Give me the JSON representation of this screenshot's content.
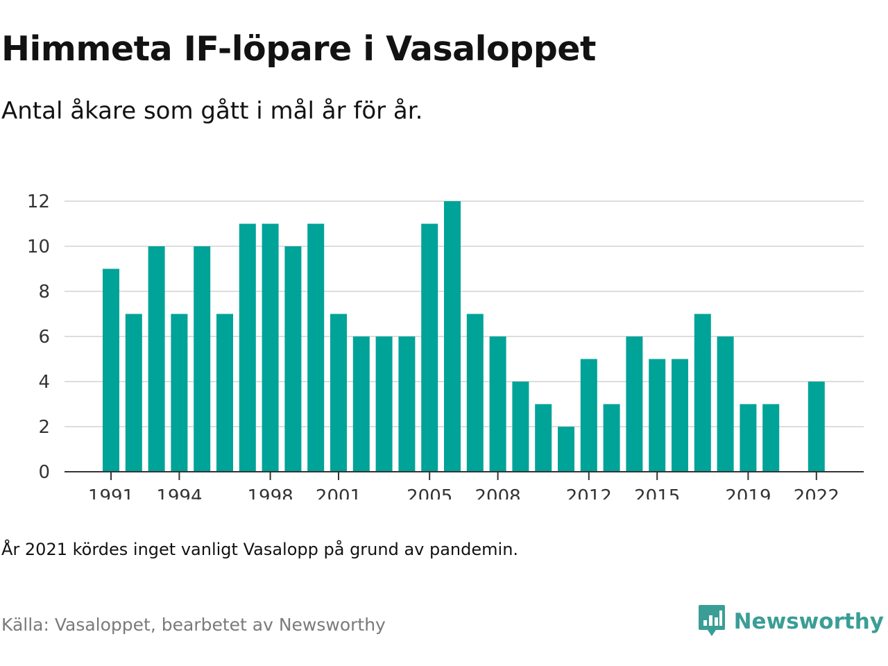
{
  "header": {
    "title": "Himmeta IF-löpare i Vasaloppet",
    "subtitle": "Antal åkare som gått i mål år för år."
  },
  "footer": {
    "note": "År 2021 kördes inget vanligt Vasalopp på grund av pandemin.",
    "source": "Källa: Vasaloppet, bearbetet av Newsworthy",
    "brand_name": "Newsworthy",
    "brand_icon": "newsworthy-logo-icon"
  },
  "colors": {
    "bar": "#00a398",
    "grid": "#dddddd",
    "axis": "#333333",
    "brand": "#3a9e96"
  },
  "chart_data": {
    "type": "bar",
    "title": "Himmeta IF-löpare i Vasaloppet",
    "subtitle": "Antal åkare som gått i mål år för år.",
    "xlabel": "",
    "ylabel": "",
    "categories": [
      1991,
      1992,
      1993,
      1994,
      1995,
      1996,
      1997,
      1998,
      1999,
      2000,
      2001,
      2002,
      2003,
      2004,
      2005,
      2006,
      2007,
      2008,
      2009,
      2010,
      2011,
      2012,
      2013,
      2014,
      2015,
      2016,
      2017,
      2018,
      2019,
      2020,
      2021,
      2022
    ],
    "values": [
      9,
      7,
      10,
      7,
      10,
      7,
      11,
      11,
      10,
      11,
      7,
      6,
      6,
      6,
      11,
      12,
      7,
      6,
      4,
      3,
      2,
      5,
      3,
      6,
      5,
      5,
      7,
      6,
      3,
      3,
      null,
      4
    ],
    "x_tick_labels": [
      "1991",
      "1994",
      "1998",
      "2001",
      "2005",
      "2008",
      "2012",
      "2015",
      "2019",
      "2022"
    ],
    "y_ticks": [
      0,
      2,
      4,
      6,
      8,
      10,
      12
    ],
    "ylim": [
      0,
      12
    ],
    "grid": true,
    "legend": "none"
  }
}
